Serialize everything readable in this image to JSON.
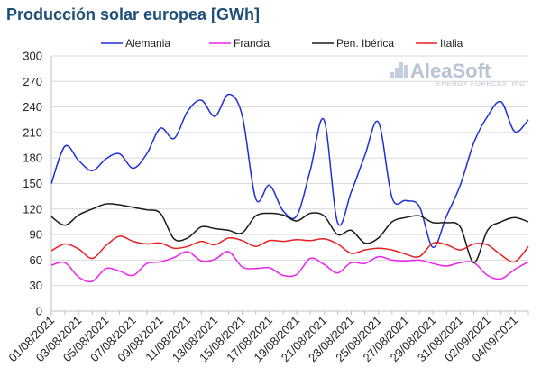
{
  "chart_data": {
    "type": "line",
    "title": "Producción solar europea [GWh]",
    "xlabel": "",
    "ylabel": "",
    "ylim": [
      0,
      300
    ],
    "yticks": [
      0,
      30,
      60,
      90,
      120,
      150,
      180,
      210,
      240,
      270,
      300
    ],
    "grid": true,
    "legend_position": "top",
    "x": [
      "01/08/2021",
      "02/08/2021",
      "03/08/2021",
      "04/08/2021",
      "05/08/2021",
      "06/08/2021",
      "07/08/2021",
      "08/08/2021",
      "09/08/2021",
      "10/08/2021",
      "11/08/2021",
      "12/08/2021",
      "13/08/2021",
      "14/08/2021",
      "15/08/2021",
      "16/08/2021",
      "17/08/2021",
      "18/08/2021",
      "19/08/2021",
      "20/08/2021",
      "21/08/2021",
      "22/08/2021",
      "23/08/2021",
      "24/08/2021",
      "25/08/2021",
      "26/08/2021",
      "27/08/2021",
      "28/08/2021",
      "29/08/2021",
      "30/08/2021",
      "31/08/2021",
      "01/09/2021",
      "02/09/2021",
      "03/09/2021",
      "04/09/2021",
      "05/09/2021"
    ],
    "xtick_labels": [
      "01/08/2021",
      "03/08/2021",
      "05/08/2021",
      "07/08/2021",
      "09/08/2021",
      "11/08/2021",
      "13/08/2021",
      "15/08/2021",
      "17/08/2021",
      "19/08/2021",
      "21/08/2021",
      "23/08/2021",
      "25/08/2021",
      "27/08/2021",
      "29/08/2021",
      "31/08/2021",
      "02/09/2021",
      "04/09/2021"
    ],
    "series": [
      {
        "name": "Alemania",
        "color": "#1f2fd6",
        "values": [
          150,
          194,
          177,
          165,
          179,
          185,
          168,
          185,
          215,
          203,
          235,
          248,
          229,
          255,
          230,
          132,
          148,
          118,
          112,
          166,
          225,
          104,
          140,
          183,
          222,
          133,
          130,
          123,
          75,
          112,
          148,
          198,
          229,
          246,
          211,
          225
        ]
      },
      {
        "name": "Francia",
        "color": "#ee22ee",
        "values": [
          54,
          57,
          40,
          35,
          50,
          47,
          42,
          56,
          58,
          63,
          70,
          59,
          61,
          70,
          52,
          50,
          51,
          42,
          43,
          62,
          55,
          45,
          57,
          56,
          64,
          60,
          59,
          60,
          56,
          53,
          57,
          57,
          42,
          38,
          49,
          58
        ]
      },
      {
        "name": "Pen. Ibérica",
        "color": "#1a1a1a",
        "values": [
          111,
          101,
          113,
          120,
          126,
          125,
          122,
          119,
          115,
          85,
          86,
          99,
          97,
          95,
          92,
          112,
          115,
          113,
          106,
          115,
          112,
          90,
          95,
          80,
          86,
          105,
          110,
          112,
          104,
          104,
          99,
          57,
          95,
          105,
          110,
          105
        ]
      },
      {
        "name": "Italia",
        "color": "#e61e1e",
        "values": [
          71,
          79,
          73,
          62,
          77,
          88,
          82,
          79,
          80,
          74,
          76,
          82,
          78,
          86,
          83,
          76,
          83,
          82,
          84,
          83,
          85,
          79,
          68,
          72,
          74,
          72,
          67,
          64,
          80,
          78,
          72,
          79,
          78,
          66,
          58,
          76
        ]
      }
    ]
  },
  "logo": {
    "name": "AleaSoft",
    "tagline": "ENERGY FORECASTING"
  }
}
